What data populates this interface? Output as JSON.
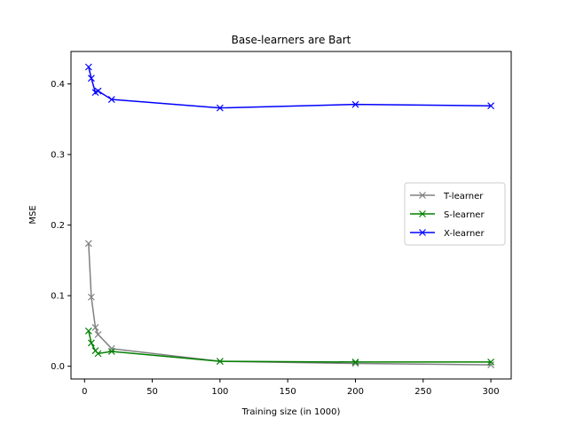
{
  "chart_data": {
    "type": "line",
    "title": "Base-learners are Bart",
    "xlabel": "Training size (in 1000)",
    "ylabel": "MSE",
    "xlim": [
      -10,
      315
    ],
    "ylim": [
      -0.018,
      0.446
    ],
    "xticks": [
      "0",
      "50",
      "100",
      "150",
      "200",
      "250",
      "300"
    ],
    "yticks": [
      "0.0",
      "0.1",
      "0.2",
      "0.3",
      "0.4"
    ],
    "grid": false,
    "legend_position": "center-right",
    "marker": "x",
    "series": [
      {
        "name": "T-learner",
        "color": "#808080",
        "x": [
          3,
          5,
          8,
          10,
          20,
          100,
          200,
          300
        ],
        "y": [
          0.174,
          0.098,
          0.055,
          0.045,
          0.025,
          0.007,
          0.004,
          0.002
        ]
      },
      {
        "name": "S-learner",
        "color": "#008000",
        "x": [
          3,
          5,
          8,
          10,
          20,
          100,
          200,
          300
        ],
        "y": [
          0.05,
          0.033,
          0.022,
          0.018,
          0.021,
          0.007,
          0.006,
          0.006
        ]
      },
      {
        "name": "X-learner",
        "color": "#0000ff",
        "x": [
          3,
          5,
          8,
          10,
          20,
          100,
          200,
          300
        ],
        "y": [
          0.424,
          0.408,
          0.388,
          0.39,
          0.378,
          0.366,
          0.371,
          0.369
        ]
      }
    ]
  }
}
